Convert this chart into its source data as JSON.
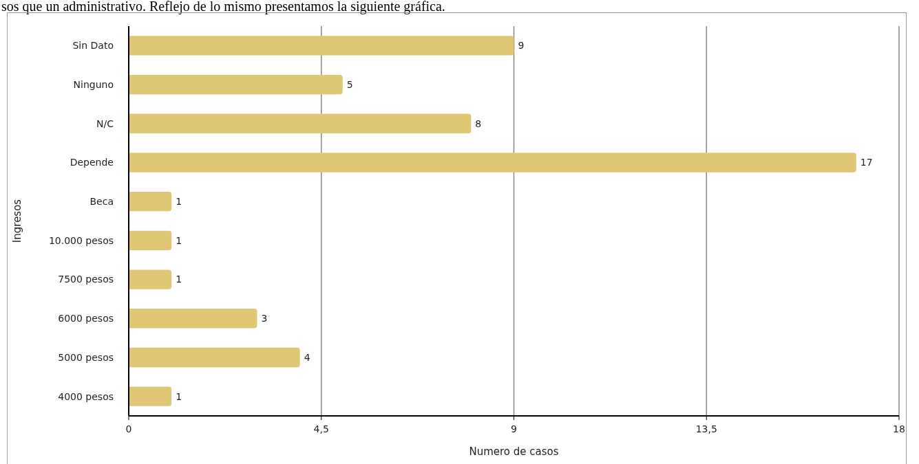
{
  "chart_data": {
    "type": "bar",
    "orientation": "horizontal",
    "categories": [
      "Sin Dato",
      "Ninguno",
      "N/C",
      "Depende",
      "Beca",
      "10.000 pesos",
      "7500 pesos",
      "6000 pesos",
      "5000 pesos",
      "4000 pesos"
    ],
    "values": [
      9,
      5,
      8,
      17,
      1,
      1,
      1,
      3,
      4,
      1
    ],
    "color": "#e0c775",
    "xlim": [
      0,
      18
    ],
    "xticks": [
      0,
      {
        "value": 4.5,
        "label": "4,5"
      },
      9,
      {
        "value": 13.5,
        "label": "13,5"
      },
      18
    ],
    "grid": "x",
    "data_labels": true,
    "xlabel": "Numero de casos",
    "ylabel": "Ingresos",
    "annotations": [
      "sos que un administrativo. Reflejo de lo mismo presentamos la siguiente gráfica."
    ]
  }
}
